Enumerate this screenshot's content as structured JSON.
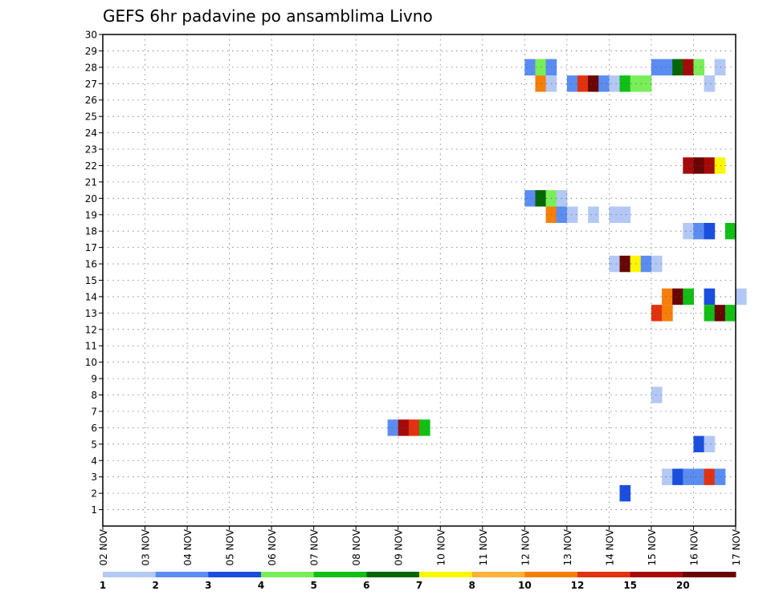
{
  "chart_data": {
    "type": "heatmap",
    "title": "GEFS 6hr padavine po ansamblima Livno",
    "xlabel": "",
    "ylabel": "",
    "x_tick_labels": [
      "02 NOV",
      "03 NOV",
      "04 NOV",
      "05 NOV",
      "06 NOV",
      "07 NOV",
      "08 NOV",
      "09 NOV",
      "10 NOV",
      "11 NOV",
      "12 NOV",
      "13 NOV",
      "14 NOV",
      "15 NOV",
      "16 NOV",
      "17 NOV"
    ],
    "y_tick_labels": [
      "1",
      "2",
      "3",
      "4",
      "5",
      "6",
      "7",
      "8",
      "9",
      "10",
      "11",
      "12",
      "13",
      "14",
      "15",
      "16",
      "17",
      "18",
      "19",
      "20",
      "21",
      "22",
      "23",
      "24",
      "25",
      "26",
      "27",
      "28",
      "29",
      "30"
    ],
    "x_range": [
      0,
      15
    ],
    "y_range": [
      0,
      30
    ],
    "grid": true,
    "colorbar": {
      "position": "bottom",
      "levels": [
        "1",
        "2",
        "3",
        "4",
        "5",
        "6",
        "7",
        "8",
        "10",
        "12",
        "15",
        "20"
      ],
      "colors": [
        "#b3c8f5",
        "#5b8cf2",
        "#1a4ede",
        "#78ee58",
        "#11bf15",
        "#066606",
        "#fbf700",
        "#fbb13a",
        "#f67f09",
        "#e23210",
        "#a50a0a",
        "#6a0505"
      ]
    },
    "cells": [
      {
        "member": 28,
        "day": 10.0,
        "category": 2
      },
      {
        "member": 28,
        "day": 10.25,
        "category": 4
      },
      {
        "member": 28,
        "day": 10.5,
        "category": 2
      },
      {
        "member": 28,
        "day": 13.0,
        "category": 2
      },
      {
        "member": 28,
        "day": 13.25,
        "category": 2
      },
      {
        "member": 28,
        "day": 13.5,
        "category": 6
      },
      {
        "member": 28,
        "day": 13.75,
        "category": 11
      },
      {
        "member": 28,
        "day": 14.0,
        "category": 4
      },
      {
        "member": 28,
        "day": 14.5,
        "category": 1
      },
      {
        "member": 27,
        "day": 10.25,
        "category": 9
      },
      {
        "member": 27,
        "day": 10.5,
        "category": 1
      },
      {
        "member": 27,
        "day": 11.0,
        "category": 2
      },
      {
        "member": 27,
        "day": 11.25,
        "category": 10
      },
      {
        "member": 27,
        "day": 11.5,
        "category": 12
      },
      {
        "member": 27,
        "day": 11.75,
        "category": 2
      },
      {
        "member": 27,
        "day": 12.0,
        "category": 1
      },
      {
        "member": 27,
        "day": 12.25,
        "category": 5
      },
      {
        "member": 27,
        "day": 12.5,
        "category": 4
      },
      {
        "member": 27,
        "day": 12.75,
        "category": 4
      },
      {
        "member": 27,
        "day": 14.25,
        "category": 1
      },
      {
        "member": 22,
        "day": 13.75,
        "category": 11
      },
      {
        "member": 22,
        "day": 14.0,
        "category": 12
      },
      {
        "member": 22,
        "day": 14.25,
        "category": 11
      },
      {
        "member": 22,
        "day": 14.5,
        "category": 7
      },
      {
        "member": 20,
        "day": 10.0,
        "category": 2
      },
      {
        "member": 20,
        "day": 10.25,
        "category": 6
      },
      {
        "member": 20,
        "day": 10.5,
        "category": 4
      },
      {
        "member": 20,
        "day": 10.75,
        "category": 1
      },
      {
        "member": 19,
        "day": 10.5,
        "category": 9
      },
      {
        "member": 19,
        "day": 10.75,
        "category": 2
      },
      {
        "member": 19,
        "day": 11.0,
        "category": 1
      },
      {
        "member": 19,
        "day": 11.5,
        "category": 1
      },
      {
        "member": 19,
        "day": 12.0,
        "category": 1
      },
      {
        "member": 19,
        "day": 12.25,
        "category": 1
      },
      {
        "member": 18,
        "day": 13.75,
        "category": 1
      },
      {
        "member": 18,
        "day": 14.0,
        "category": 2
      },
      {
        "member": 18,
        "day": 14.25,
        "category": 3
      },
      {
        "member": 18,
        "day": 14.75,
        "category": 5
      },
      {
        "member": 16,
        "day": 12.0,
        "category": 1
      },
      {
        "member": 16,
        "day": 12.25,
        "category": 12
      },
      {
        "member": 16,
        "day": 12.5,
        "category": 7
      },
      {
        "member": 16,
        "day": 12.75,
        "category": 2
      },
      {
        "member": 16,
        "day": 13.0,
        "category": 1
      },
      {
        "member": 14,
        "day": 13.25,
        "category": 9
      },
      {
        "member": 14,
        "day": 13.5,
        "category": 12
      },
      {
        "member": 14,
        "day": 13.75,
        "category": 5
      },
      {
        "member": 14,
        "day": 14.25,
        "category": 3
      },
      {
        "member": 14,
        "day": 15.0,
        "category": 1
      },
      {
        "member": 13,
        "day": 13.0,
        "category": 10
      },
      {
        "member": 13,
        "day": 13.25,
        "category": 9
      },
      {
        "member": 13,
        "day": 14.25,
        "category": 5
      },
      {
        "member": 13,
        "day": 14.5,
        "category": 12
      },
      {
        "member": 13,
        "day": 14.75,
        "category": 5
      },
      {
        "member": 8,
        "day": 13.0,
        "category": 1
      },
      {
        "member": 6,
        "day": 6.75,
        "category": 2
      },
      {
        "member": 6,
        "day": 7.0,
        "category": 11
      },
      {
        "member": 6,
        "day": 7.25,
        "category": 10
      },
      {
        "member": 6,
        "day": 7.5,
        "category": 5
      },
      {
        "member": 5,
        "day": 14.0,
        "category": 3
      },
      {
        "member": 5,
        "day": 14.25,
        "category": 1
      },
      {
        "member": 3,
        "day": 13.25,
        "category": 1
      },
      {
        "member": 3,
        "day": 13.5,
        "category": 3
      },
      {
        "member": 3,
        "day": 13.75,
        "category": 2
      },
      {
        "member": 3,
        "day": 14.0,
        "category": 2
      },
      {
        "member": 3,
        "day": 14.25,
        "category": 10
      },
      {
        "member": 3,
        "day": 14.5,
        "category": 2
      },
      {
        "member": 2,
        "day": 12.25,
        "category": 3
      }
    ]
  }
}
